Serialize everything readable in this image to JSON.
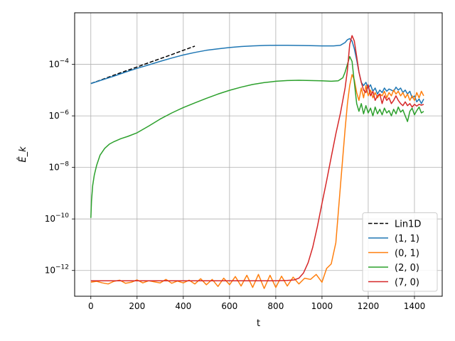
{
  "chart_data": {
    "type": "line",
    "title": "",
    "xlabel": "t",
    "ylabel": "Ê_k",
    "xlim": [
      -70,
      1520
    ],
    "ylim": [
      1e-13,
      0.01
    ],
    "yscale": "log",
    "grid": true,
    "legend_position": "lower-right",
    "x_ticks": [
      0,
      200,
      400,
      600,
      800,
      1000,
      1200,
      1400
    ],
    "x_tick_labels": [
      "0",
      "200",
      "400",
      "600",
      "800",
      "1000",
      "1200",
      "1400"
    ],
    "y_ticks": [
      1e-12,
      1e-10,
      1e-08,
      1e-06,
      0.0001
    ],
    "y_tick_labels": [
      {
        "base": "10",
        "exp": "−12"
      },
      {
        "base": "10",
        "exp": "−10"
      },
      {
        "base": "10",
        "exp": "−8"
      },
      {
        "base": "10",
        "exp": "−6"
      },
      {
        "base": "10",
        "exp": "−4"
      }
    ],
    "series": [
      {
        "name": "Lin1D",
        "color": "#000000",
        "dash": true,
        "x": [
          0,
          50,
          100,
          150,
          200,
          250,
          300,
          350,
          400,
          450
        ],
        "y": [
          1.8e-05,
          2.6e-05,
          3.8e-05,
          5.5e-05,
          7.9e-05,
          0.000115,
          0.000166,
          0.00024,
          0.00035,
          0.00051
        ]
      },
      {
        "name": "(1, 1)",
        "color": "#1f77b4",
        "dash": false,
        "x": [
          0,
          50,
          100,
          150,
          200,
          250,
          300,
          350,
          400,
          450,
          500,
          550,
          600,
          650,
          700,
          750,
          800,
          850,
          900,
          950,
          1000,
          1050,
          1080,
          1100,
          1110,
          1120,
          1130,
          1140,
          1150,
          1160,
          1170,
          1180,
          1190,
          1200,
          1210,
          1220,
          1230,
          1240,
          1250,
          1260,
          1270,
          1280,
          1290,
          1300,
          1310,
          1320,
          1330,
          1340,
          1350,
          1360,
          1370,
          1380,
          1390,
          1400,
          1410,
          1420,
          1430,
          1440
        ],
        "y": [
          1.8e-05,
          2.5e-05,
          3.5e-05,
          5e-05,
          7e-05,
          9.5e-05,
          0.00013,
          0.000175,
          0.00023,
          0.00029,
          0.00035,
          0.0004,
          0.00045,
          0.00049,
          0.00052,
          0.00054,
          0.00055,
          0.00055,
          0.00054,
          0.00053,
          0.00052,
          0.00052,
          0.00055,
          0.0007,
          0.0009,
          0.001,
          0.0008,
          0.0004,
          0.00015,
          5e-05,
          2e-05,
          1.5e-05,
          2e-05,
          1.2e-05,
          1.6e-05,
          9e-06,
          1.2e-05,
          7e-06,
          1e-05,
          8e-06,
          1.2e-05,
          9e-06,
          1.1e-05,
          1e-05,
          9e-06,
          1.3e-05,
          1e-05,
          1.2e-05,
          8e-06,
          1e-05,
          7e-06,
          9e-06,
          5e-06,
          6e-06,
          3.5e-06,
          4.5e-06,
          3e-06,
          4.5e-06
        ]
      },
      {
        "name": "(0, 1)",
        "color": "#ff7f0e",
        "dash": false,
        "x": [
          0,
          25,
          50,
          75,
          100,
          125,
          150,
          175,
          200,
          225,
          250,
          275,
          300,
          325,
          350,
          375,
          400,
          425,
          450,
          475,
          500,
          525,
          550,
          575,
          600,
          625,
          650,
          675,
          700,
          725,
          750,
          775,
          800,
          825,
          850,
          875,
          900,
          925,
          950,
          975,
          1000,
          1020,
          1040,
          1060,
          1080,
          1100,
          1110,
          1120,
          1130,
          1140,
          1150,
          1160,
          1170,
          1180,
          1190,
          1200,
          1210,
          1220,
          1230,
          1240,
          1250,
          1260,
          1270,
          1280,
          1290,
          1300,
          1310,
          1320,
          1330,
          1340,
          1350,
          1360,
          1370,
          1380,
          1390,
          1400,
          1410,
          1420,
          1430,
          1440
        ],
        "y": [
          3.5e-13,
          3.8e-13,
          3.3e-13,
          3e-13,
          3.8e-13,
          4.2e-13,
          3.2e-13,
          3.5e-13,
          4.3e-13,
          3.3e-13,
          4e-13,
          3.6e-13,
          3.3e-13,
          4.5e-13,
          3.2e-13,
          3.9e-13,
          3.3e-13,
          4.2e-13,
          3e-13,
          4.8e-13,
          2.8e-13,
          4.5e-13,
          2.4e-13,
          5e-13,
          2.8e-13,
          5.8e-13,
          2.5e-13,
          6.5e-13,
          2.2e-13,
          7e-13,
          2e-13,
          6.5e-13,
          2.2e-13,
          6e-13,
          2.5e-13,
          5.5e-13,
          3e-13,
          5e-13,
          4.5e-13,
          7e-13,
          3.5e-13,
          1.2e-12,
          1.8e-12,
          1.2e-11,
          2e-09,
          3e-07,
          3e-06,
          1.5e-05,
          4e-05,
          2.5e-05,
          8e-06,
          4e-06,
          1.2e-05,
          5e-06,
          1.5e-05,
          6e-06,
          1e-05,
          5e-06,
          8e-06,
          5e-06,
          7e-06,
          6e-06,
          9e-06,
          5e-06,
          8e-06,
          6e-06,
          1e-05,
          7e-06,
          9e-06,
          6e-06,
          8e-06,
          5e-06,
          7e-06,
          4e-06,
          6e-06,
          4e-06,
          8e-06,
          5e-06,
          9e-06,
          6e-06
        ]
      },
      {
        "name": "(2, 0)",
        "color": "#2ca02c",
        "dash": false,
        "x": [
          0,
          3,
          8,
          15,
          25,
          40,
          60,
          80,
          100,
          130,
          160,
          200,
          250,
          300,
          350,
          400,
          450,
          500,
          550,
          600,
          650,
          700,
          750,
          800,
          850,
          900,
          950,
          1000,
          1040,
          1070,
          1090,
          1100,
          1110,
          1120,
          1130,
          1140,
          1150,
          1160,
          1170,
          1180,
          1190,
          1200,
          1210,
          1220,
          1230,
          1240,
          1250,
          1260,
          1270,
          1280,
          1290,
          1300,
          1310,
          1320,
          1330,
          1340,
          1350,
          1360,
          1370,
          1380,
          1390,
          1400,
          1410,
          1420,
          1430,
          1440
        ],
        "y": [
          1.1e-10,
          5e-10,
          2e-09,
          5e-09,
          1.2e-08,
          3e-08,
          5.5e-08,
          8e-08,
          1e-07,
          1.3e-07,
          1.6e-07,
          2.2e-07,
          4e-07,
          7.5e-07,
          1.3e-06,
          2.1e-06,
          3.2e-06,
          4.8e-06,
          7e-06,
          9.8e-06,
          1.3e-05,
          1.65e-05,
          1.95e-05,
          2.2e-05,
          2.35e-05,
          2.4e-05,
          2.35e-05,
          2.3e-05,
          2.2e-05,
          2.3e-05,
          3e-05,
          5e-05,
          0.0001,
          0.0002,
          0.00013,
          2e-05,
          3e-06,
          1.5e-06,
          3e-06,
          1.2e-06,
          2.5e-06,
          1.3e-06,
          2e-06,
          1e-06,
          2.2e-06,
          1.2e-06,
          1.8e-06,
          1.1e-06,
          2e-06,
          1.3e-06,
          1.6e-06,
          1e-06,
          1.8e-06,
          1.2e-06,
          2.2e-06,
          1.4e-06,
          1.7e-06,
          1e-06,
          6e-07,
          1.5e-06,
          2e-06,
          1.1e-06,
          1.6e-06,
          2.2e-06,
          1.3e-06,
          1.5e-06
        ]
      },
      {
        "name": "(7, 0)",
        "color": "#d62728",
        "dash": false,
        "x": [
          0,
          50,
          100,
          150,
          200,
          250,
          300,
          350,
          400,
          450,
          500,
          550,
          600,
          650,
          700,
          750,
          800,
          850,
          880,
          900,
          920,
          940,
          960,
          980,
          1000,
          1020,
          1040,
          1060,
          1080,
          1100,
          1110,
          1120,
          1130,
          1140,
          1150,
          1160,
          1170,
          1180,
          1190,
          1200,
          1210,
          1220,
          1230,
          1240,
          1250,
          1260,
          1270,
          1280,
          1290,
          1300,
          1310,
          1320,
          1330,
          1340,
          1350,
          1360,
          1370,
          1380,
          1390,
          1400,
          1410,
          1420,
          1430,
          1440
        ],
        "y": [
          4e-13,
          4e-13,
          4e-13,
          4e-13,
          4e-13,
          4e-13,
          4e-13,
          4e-13,
          4e-13,
          4e-13,
          4e-13,
          4e-13,
          4e-13,
          4e-13,
          4e-13,
          4e-13,
          4e-13,
          4.1e-13,
          4.3e-13,
          5e-13,
          8e-13,
          2e-12,
          8e-12,
          5e-11,
          4e-10,
          3e-09,
          2.5e-08,
          2e-07,
          1.3e-06,
          1.2e-05,
          6e-05,
          0.0006,
          0.0013,
          0.0008,
          0.0002,
          5e-05,
          2e-05,
          1e-05,
          8e-06,
          1.6e-05,
          6e-06,
          9e-06,
          4e-06,
          6e-06,
          7e-06,
          3e-06,
          6e-06,
          4e-06,
          5e-06,
          3e-06,
          4e-06,
          6e-06,
          4e-06,
          3e-06,
          2.5e-06,
          3.5e-06,
          2.5e-06,
          3e-06,
          2.2e-06,
          2.8e-06,
          2.4e-06,
          2.8e-06,
          2.6e-06,
          2.8e-06
        ]
      }
    ]
  }
}
